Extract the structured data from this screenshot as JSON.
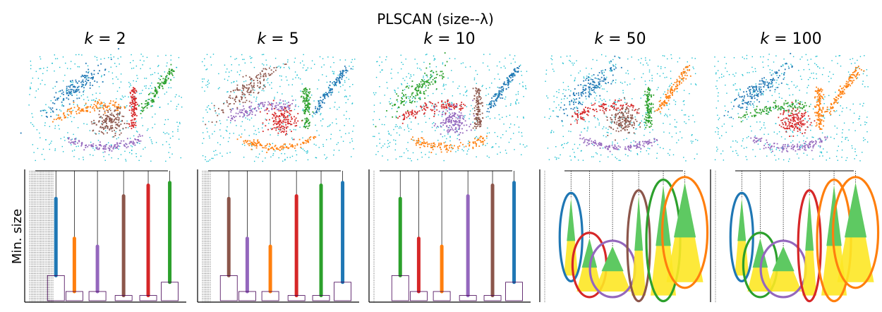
{
  "figure": {
    "suptitle": "PLSCAN (size--λ)",
    "ylabel": "Min. size"
  },
  "chart_data": {
    "type": "scatter",
    "title": "PLSCAN (size--λ)",
    "panels": [
      {
        "title": "k = 2",
        "title_var": "k",
        "title_val": "2"
      },
      {
        "title": "k = 5",
        "title_var": "k",
        "title_val": "5"
      },
      {
        "title": "k = 10",
        "title_var": "k",
        "title_val": "10"
      },
      {
        "title": "k = 50",
        "title_var": "k",
        "title_val": "50"
      },
      {
        "title": "k = 100",
        "title_var": "k",
        "title_val": "100"
      }
    ],
    "cluster_colors": [
      "#1f77b4",
      "#ff7f0e",
      "#2ca02c",
      "#d62728",
      "#9467bd",
      "#8c564b"
    ],
    "noise_color": "#17becf",
    "tree_colormap": [
      "#440154",
      "#3b528b",
      "#21918c",
      "#5ec962",
      "#fde725"
    ],
    "rows": [
      "scatter",
      "condensed-tree"
    ],
    "ylabel": "Min. size"
  }
}
